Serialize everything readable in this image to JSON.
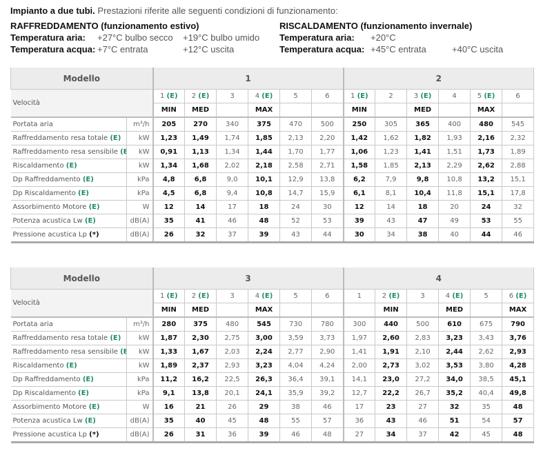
{
  "intro": {
    "bold": "Impianto a due tubi.",
    "text": " Prestazioni riferite alle seguenti condizioni di funzionamento:"
  },
  "cooling": {
    "title": "RAFFREDDAMENTO (funzionamento estivo)",
    "air_label": "Temperatura aria:",
    "air_1": "+27°C bulbo secco",
    "air_2": "+19°C bulbo umido",
    "water_label": "Temperatura acqua:",
    "water_1": "+7°C entrata",
    "water_2": "+12°C uscita"
  },
  "heating": {
    "title": "RISCALDAMENTO (funzionamento invernale)",
    "air_label": "Temperatura aria:",
    "air_1": "+20°C",
    "water_label": "Temperatura acqua:",
    "water_1": "+45°C entrata",
    "water_2": "+40°C uscita"
  },
  "colors": {
    "energy_marker": "#1f8a6e",
    "header_bg": "#ececec"
  },
  "tables": [
    {
      "model_label": "Modello",
      "speed_label": "Velocità",
      "models": [
        {
          "name": "1",
          "speeds": [
            {
              "n": "1",
              "e": true,
              "tag": "MIN"
            },
            {
              "n": "2",
              "e": true,
              "tag": "MED"
            },
            {
              "n": "3",
              "e": false,
              "tag": ""
            },
            {
              "n": "4",
              "e": true,
              "tag": "MAX"
            },
            {
              "n": "5",
              "e": false,
              "tag": ""
            },
            {
              "n": "6",
              "e": false,
              "tag": ""
            }
          ]
        },
        {
          "name": "2",
          "speeds": [
            {
              "n": "1",
              "e": true,
              "tag": "MIN"
            },
            {
              "n": "2",
              "e": false,
              "tag": ""
            },
            {
              "n": "3",
              "e": true,
              "tag": "MED"
            },
            {
              "n": "4",
              "e": false,
              "tag": ""
            },
            {
              "n": "5",
              "e": true,
              "tag": "MAX"
            },
            {
              "n": "6",
              "e": false,
              "tag": ""
            }
          ]
        }
      ],
      "rows": [
        {
          "label": "Portata aria",
          "marker": "",
          "unit": "m³/h",
          "values": [
            "205",
            "270",
            "340",
            "375",
            "470",
            "500",
            "250",
            "305",
            "365",
            "400",
            "480",
            "545"
          ]
        },
        {
          "label": "Raffreddamento resa totale",
          "marker": "(E)",
          "unit": "kW",
          "values": [
            "1,23",
            "1,49",
            "1,74",
            "1,85",
            "2,13",
            "2,20",
            "1,42",
            "1,62",
            "1,82",
            "1,93",
            "2,16",
            "2,32"
          ]
        },
        {
          "label": "Raffreddamento resa sensibile",
          "marker": "(E)",
          "unit": "kW",
          "values": [
            "0,91",
            "1,13",
            "1,34",
            "1,44",
            "1,70",
            "1,77",
            "1,06",
            "1,23",
            "1,41",
            "1,51",
            "1,73",
            "1,89"
          ]
        },
        {
          "label": "Riscaldamento",
          "marker": "(E)",
          "unit": "kW",
          "values": [
            "1,34",
            "1,68",
            "2,02",
            "2,18",
            "2,58",
            "2,71",
            "1,58",
            "1,85",
            "2,13",
            "2,29",
            "2,62",
            "2,88"
          ]
        },
        {
          "label": "Dp Raffreddamento",
          "marker": "(E)",
          "unit": "kPa",
          "values": [
            "4,8",
            "6,8",
            "9,0",
            "10,1",
            "12,9",
            "13,8",
            "6,2",
            "7,9",
            "9,8",
            "10,8",
            "13,2",
            "15,1"
          ]
        },
        {
          "label": "Dp Riscaldamento",
          "marker": "(E)",
          "unit": "kPa",
          "values": [
            "4,5",
            "6,8",
            "9,4",
            "10,8",
            "14,7",
            "15,9",
            "6,1",
            "8,1",
            "10,4",
            "11,8",
            "15,1",
            "17,8"
          ]
        },
        {
          "label": "Assorbimento Motore",
          "marker": "(E)",
          "unit": "W",
          "values": [
            "12",
            "14",
            "17",
            "18",
            "24",
            "30",
            "12",
            "14",
            "18",
            "20",
            "24",
            "32"
          ]
        },
        {
          "label": "Potenza acustica Lw",
          "marker": "(E)",
          "unit": "dB(A)",
          "values": [
            "35",
            "41",
            "46",
            "48",
            "52",
            "53",
            "39",
            "43",
            "47",
            "49",
            "53",
            "55"
          ]
        },
        {
          "label": "Pressione acustica Lp",
          "marker": "(*)",
          "unit": "dB(A)",
          "values": [
            "26",
            "32",
            "37",
            "39",
            "43",
            "44",
            "30",
            "34",
            "38",
            "40",
            "44",
            "46"
          ]
        }
      ]
    },
    {
      "model_label": "Modello",
      "speed_label": "Velocità",
      "models": [
        {
          "name": "3",
          "speeds": [
            {
              "n": "1",
              "e": true,
              "tag": "MIN"
            },
            {
              "n": "2",
              "e": true,
              "tag": "MED"
            },
            {
              "n": "3",
              "e": false,
              "tag": ""
            },
            {
              "n": "4",
              "e": true,
              "tag": "MAX"
            },
            {
              "n": "5",
              "e": false,
              "tag": ""
            },
            {
              "n": "6",
              "e": false,
              "tag": ""
            }
          ]
        },
        {
          "name": "4",
          "speeds": [
            {
              "n": "1",
              "e": false,
              "tag": ""
            },
            {
              "n": "2",
              "e": true,
              "tag": "MIN"
            },
            {
              "n": "3",
              "e": false,
              "tag": ""
            },
            {
              "n": "4",
              "e": true,
              "tag": "MED"
            },
            {
              "n": "5",
              "e": false,
              "tag": ""
            },
            {
              "n": "6",
              "e": true,
              "tag": "MAX"
            }
          ]
        }
      ],
      "rows": [
        {
          "label": "Portata aria",
          "marker": "",
          "unit": "m³/h",
          "values": [
            "280",
            "375",
            "480",
            "545",
            "730",
            "780",
            "300",
            "440",
            "500",
            "610",
            "675",
            "790"
          ]
        },
        {
          "label": "Raffreddamento resa totale",
          "marker": "(E)",
          "unit": "kW",
          "values": [
            "1,87",
            "2,30",
            "2,75",
            "3,00",
            "3,59",
            "3,73",
            "1,97",
            "2,60",
            "2,83",
            "3,23",
            "3,43",
            "3,76"
          ]
        },
        {
          "label": "Raffreddamento resa sensibile",
          "marker": "(E)",
          "unit": "kW",
          "values": [
            "1,33",
            "1,67",
            "2,03",
            "2,24",
            "2,77",
            "2,90",
            "1,41",
            "1,91",
            "2,10",
            "2,44",
            "2,62",
            "2,93"
          ]
        },
        {
          "label": "Riscaldamento",
          "marker": "(E)",
          "unit": "kW",
          "values": [
            "1,89",
            "2,37",
            "2,93",
            "3,23",
            "4,04",
            "4,24",
            "2,00",
            "2,73",
            "3,02",
            "3,53",
            "3,80",
            "4,28"
          ]
        },
        {
          "label": "Dp Raffreddamento",
          "marker": "(E)",
          "unit": "kPa",
          "values": [
            "11,2",
            "16,2",
            "22,5",
            "26,3",
            "36,4",
            "39,1",
            "14,1",
            "23,0",
            "27,2",
            "34,0",
            "38,5",
            "45,1"
          ]
        },
        {
          "label": "Dp Riscaldamento",
          "marker": "(E)",
          "unit": "kPa",
          "values": [
            "9,1",
            "13,8",
            "20,1",
            "24,1",
            "35,9",
            "39,2",
            "12,7",
            "22,2",
            "26,7",
            "35,2",
            "40,4",
            "49,8"
          ]
        },
        {
          "label": "Assorbimento Motore",
          "marker": "(E)",
          "unit": "W",
          "values": [
            "16",
            "21",
            "26",
            "29",
            "38",
            "46",
            "17",
            "23",
            "27",
            "32",
            "35",
            "48"
          ]
        },
        {
          "label": "Potenza acustica Lw",
          "marker": "(E)",
          "unit": "dB(A)",
          "values": [
            "35",
            "40",
            "45",
            "48",
            "55",
            "57",
            "36",
            "43",
            "46",
            "51",
            "54",
            "57"
          ]
        },
        {
          "label": "Pressione acustica Lp",
          "marker": "(*)",
          "unit": "dB(A)",
          "values": [
            "26",
            "31",
            "36",
            "39",
            "46",
            "48",
            "27",
            "34",
            "37",
            "42",
            "45",
            "48"
          ]
        }
      ]
    }
  ]
}
